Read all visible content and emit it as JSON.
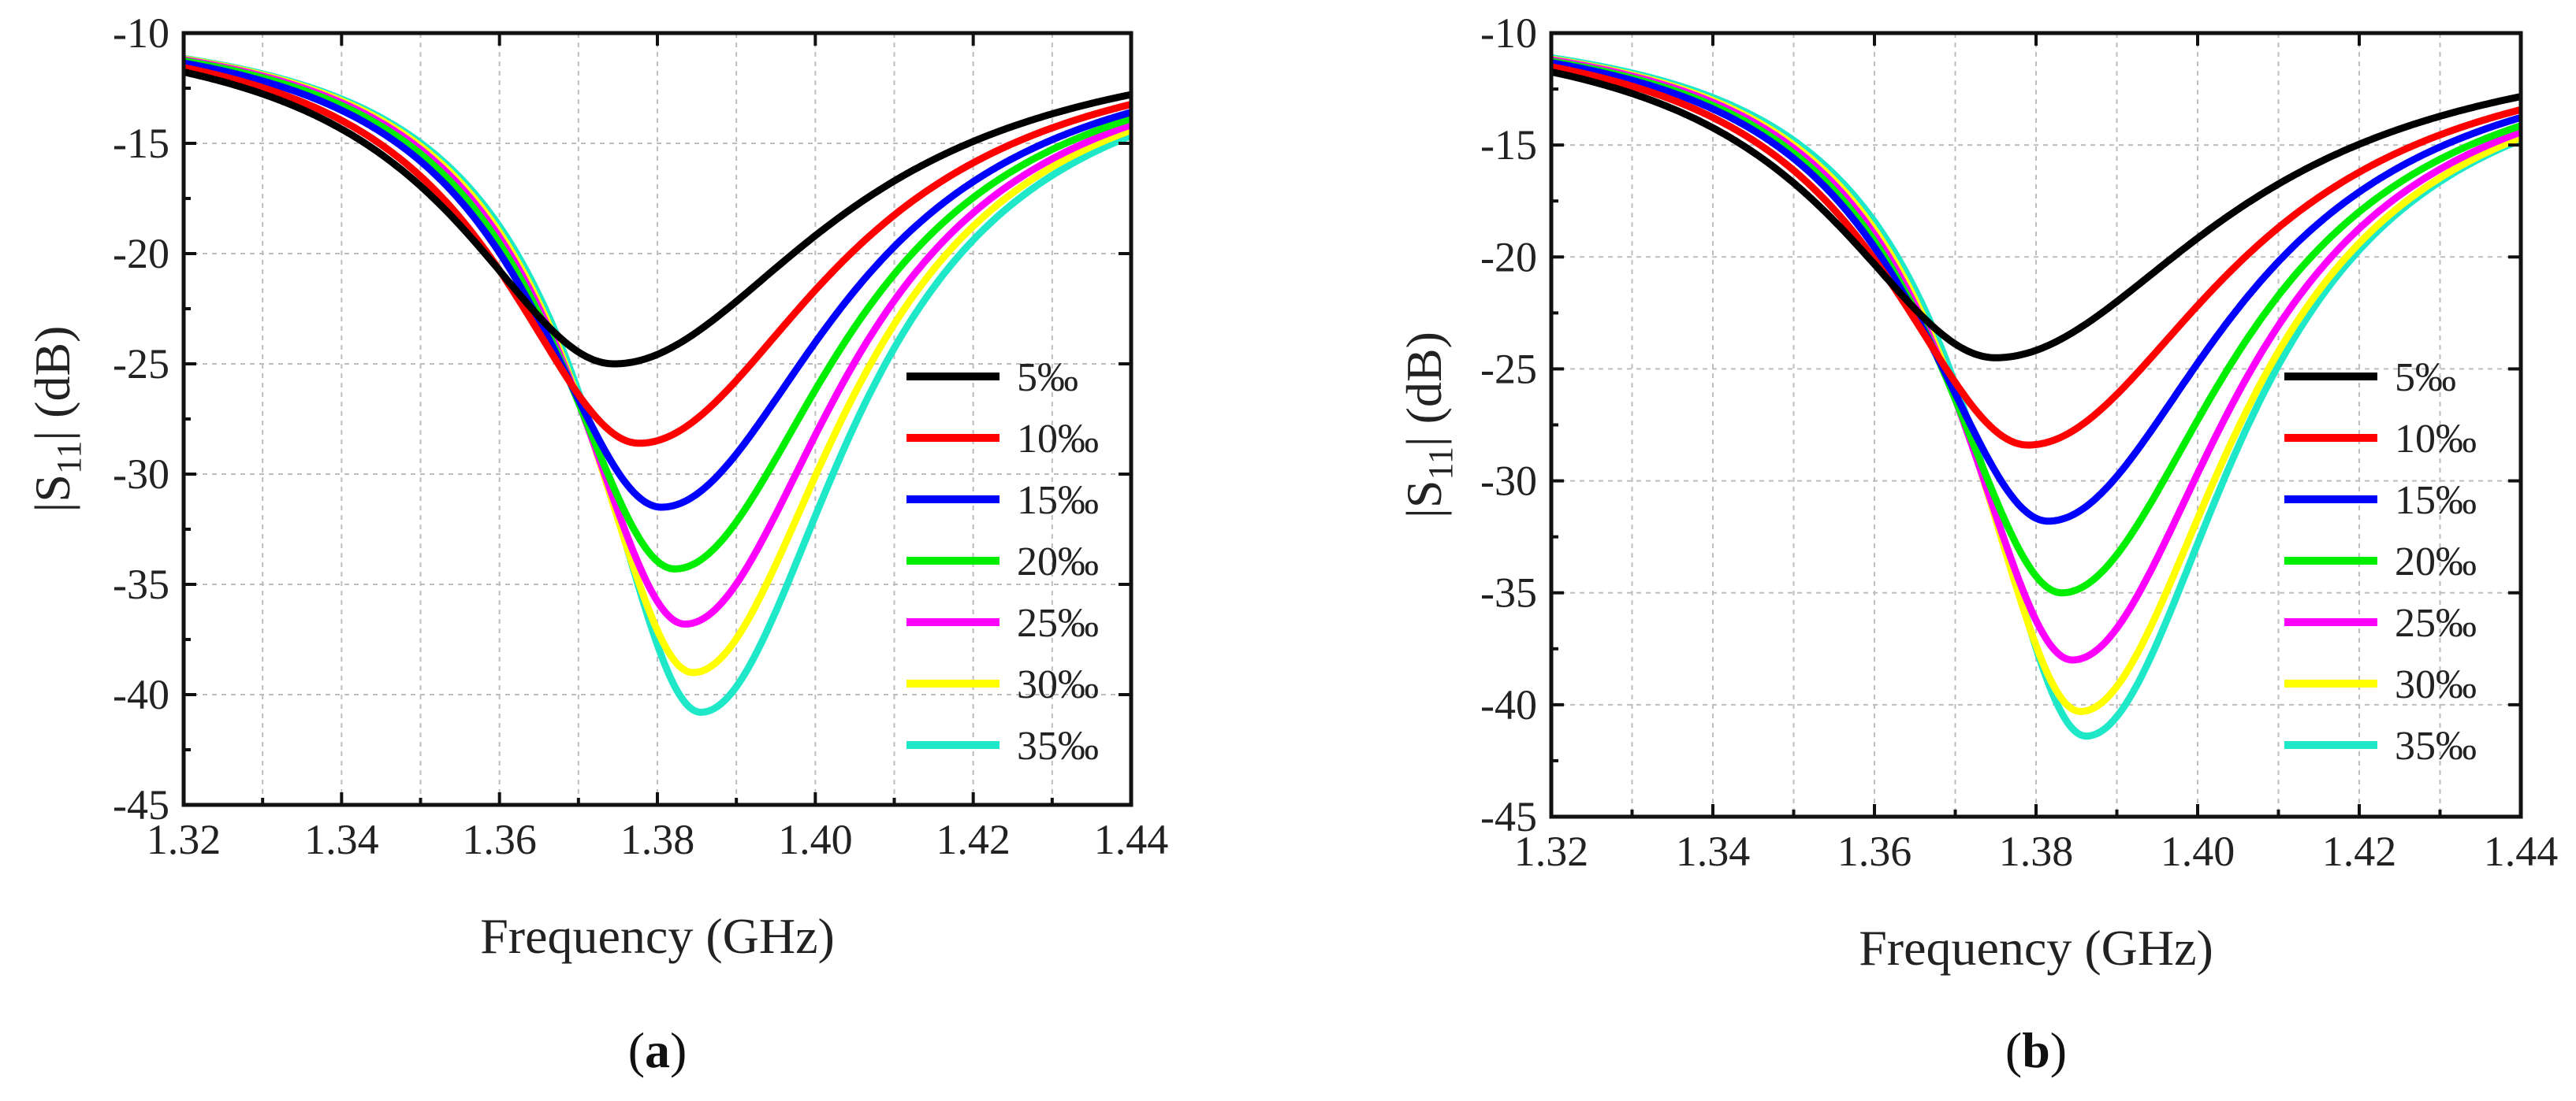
{
  "chart_data": [
    {
      "type": "line",
      "panel": "(a)",
      "panel_letter": "a",
      "xlabel": "Frequency (GHz)",
      "ylabel": "|S11| (dB)",
      "ylabel_parts": {
        "pre": "|S",
        "sub": "11",
        "post": "| (dB)"
      },
      "xlim": [
        1.32,
        1.44
      ],
      "ylim": [
        -45,
        -10
      ],
      "xticks": [
        "1.32",
        "1.34",
        "1.36",
        "1.38",
        "1.40",
        "1.42",
        "1.44"
      ],
      "yticks": [
        "-10",
        "-15",
        "-20",
        "-25",
        "-30",
        "-35",
        "-40",
        "-45"
      ],
      "grid": true,
      "legend_position": "right",
      "series": [
        {
          "name": "5‰",
          "color": "#000000",
          "f0": 1.3745,
          "min": -25.0,
          "w": 0.024
        },
        {
          "name": "10‰",
          "color": "#ff0000",
          "f0": 1.3777,
          "min": -28.6,
          "w": 0.0215
        },
        {
          "name": "15‰",
          "color": "#0000ff",
          "f0": 1.3805,
          "min": -31.5,
          "w": 0.0198
        },
        {
          "name": "20‰",
          "color": "#00ee00",
          "f0": 1.3822,
          "min": -34.3,
          "w": 0.0186
        },
        {
          "name": "25‰",
          "color": "#ff00ff",
          "f0": 1.3835,
          "min": -36.8,
          "w": 0.0178
        },
        {
          "name": "30‰",
          "color": "#ffff00",
          "f0": 1.3845,
          "min": -39.0,
          "w": 0.0172
        },
        {
          "name": "35‰",
          "color": "#1fe8c8",
          "f0": 1.3855,
          "min": -40.8,
          "w": 0.0168
        }
      ]
    },
    {
      "type": "line",
      "panel": "(b)",
      "panel_letter": "b",
      "xlabel": "Frequency (GHz)",
      "ylabel": "|S11| (dB)",
      "ylabel_parts": {
        "pre": "|S",
        "sub": "11",
        "post": "| (dB)"
      },
      "xlim": [
        1.32,
        1.44
      ],
      "ylim": [
        -45,
        -10
      ],
      "xticks": [
        "1.32",
        "1.34",
        "1.36",
        "1.38",
        "1.40",
        "1.42",
        "1.44"
      ],
      "yticks": [
        "-10",
        "-15",
        "-20",
        "-25",
        "-30",
        "-35",
        "-40",
        "-45"
      ],
      "grid": true,
      "legend_position": "right",
      "series": [
        {
          "name": "5‰",
          "color": "#000000",
          "f0": 1.375,
          "min": -24.5,
          "w": 0.0245
        },
        {
          "name": "10‰",
          "color": "#ff0000",
          "f0": 1.379,
          "min": -28.4,
          "w": 0.0218
        },
        {
          "name": "15‰",
          "color": "#0000ff",
          "f0": 1.3815,
          "min": -31.8,
          "w": 0.0198
        },
        {
          "name": "20‰",
          "color": "#00ee00",
          "f0": 1.3832,
          "min": -35.0,
          "w": 0.0186
        },
        {
          "name": "25‰",
          "color": "#ff00ff",
          "f0": 1.3845,
          "min": -38.0,
          "w": 0.0176
        },
        {
          "name": "30‰",
          "color": "#ffff00",
          "f0": 1.3855,
          "min": -40.3,
          "w": 0.017
        },
        {
          "name": "35‰",
          "color": "#1fe8c8",
          "f0": 1.3862,
          "min": -41.4,
          "w": 0.0166
        }
      ]
    }
  ]
}
